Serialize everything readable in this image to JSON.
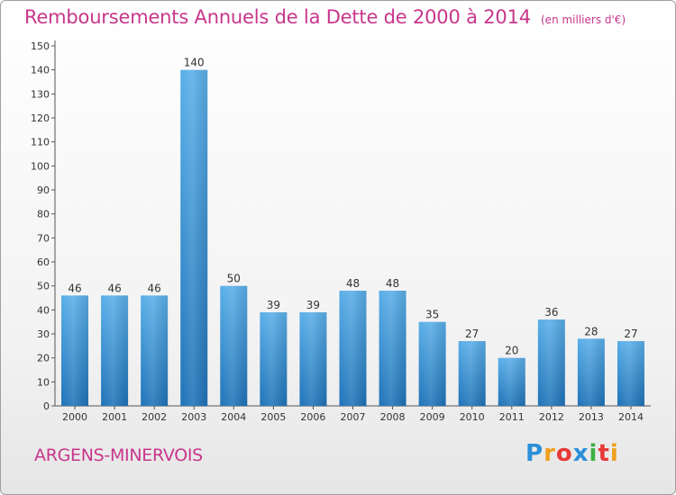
{
  "title": "Remboursements Annuels de la Dette de 2000 à 2014",
  "unit": "(en milliers d'€)",
  "commune": "ARGENS-MINERVOIS",
  "logo": {
    "letters": [
      "P",
      "r",
      "o",
      "x",
      "i",
      "t",
      "i"
    ],
    "colors": [
      "#2b8fd8",
      "#f0a020",
      "#e83a3a",
      "#2b8fd8",
      "#3cb043",
      "#e83a3a",
      "#f0a020"
    ]
  },
  "colors": {
    "bar_light": "#5aaee8",
    "bar_dark": "#1f73b8",
    "title": "#c8368b"
  },
  "chart_data": {
    "type": "bar",
    "categories": [
      "2000",
      "2001",
      "2002",
      "2003",
      "2004",
      "2005",
      "2006",
      "2007",
      "2008",
      "2009",
      "2010",
      "2011",
      "2012",
      "2013",
      "2014"
    ],
    "values": [
      46,
      46,
      46,
      140,
      50,
      39,
      39,
      48,
      48,
      35,
      27,
      20,
      36,
      28,
      27
    ],
    "ylim": [
      0,
      150
    ],
    "yticks": [
      0,
      10,
      20,
      30,
      40,
      50,
      60,
      70,
      80,
      90,
      100,
      110,
      120,
      130,
      140,
      150
    ],
    "grid": false,
    "data_labels": true
  }
}
